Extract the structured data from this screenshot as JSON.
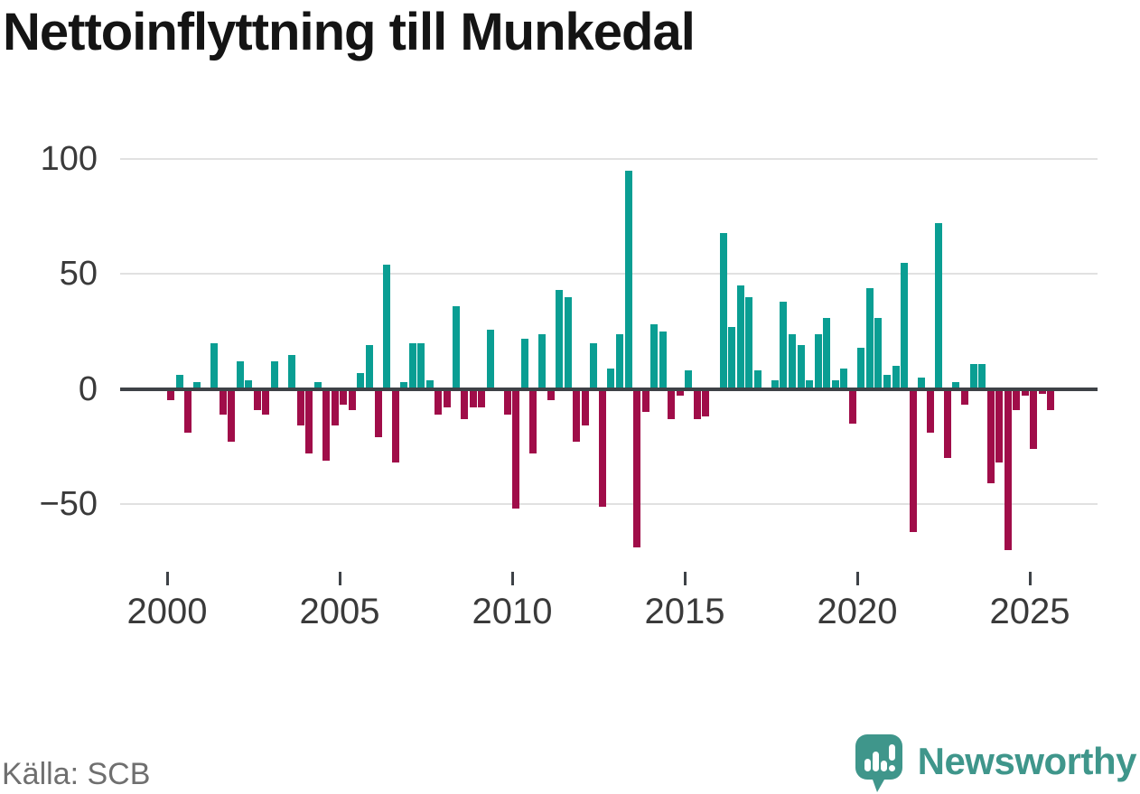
{
  "title": "Nettoinflyttning till Munkedal",
  "source": "Källa: SCB",
  "branding": {
    "logo_text": "Newsworthy",
    "logo_icon": "newsworthy-speech-bubble-chart-icon"
  },
  "colors": {
    "positive_bar": "#0a9e93",
    "negative_bar": "#a00d49",
    "zero_line": "#3e4247",
    "gridline": "#e1e1e1",
    "axis_text": "#3a3a3a",
    "title_text": "#141414",
    "source_text": "#6f6f6f",
    "brand_teal": "#3f968b"
  },
  "chart_data": {
    "type": "bar",
    "title": "Nettoinflyttning till Munkedal",
    "frequency": "quarterly",
    "start_year": 2000,
    "start_quarter": 1,
    "end_year": 2025,
    "end_quarter": 3,
    "values": [
      -5,
      6,
      -19,
      3,
      0,
      20,
      -11,
      -23,
      12,
      4,
      -9,
      -11,
      12,
      0,
      15,
      -16,
      -28,
      3,
      -31,
      -16,
      -7,
      -9,
      7,
      19,
      -21,
      54,
      -32,
      3,
      20,
      20,
      4,
      -11,
      -8,
      36,
      -13,
      -8,
      -8,
      26,
      0,
      -11,
      -52,
      22,
      -28,
      24,
      -5,
      43,
      40,
      -23,
      -16,
      20,
      -51,
      9,
      24,
      95,
      -69,
      -10,
      28,
      25,
      -13,
      -3,
      8,
      -13,
      -12,
      0,
      68,
      27,
      45,
      40,
      8,
      0,
      4,
      38,
      24,
      19,
      4,
      24,
      31,
      4,
      9,
      -15,
      18,
      44,
      31,
      6,
      10,
      55,
      -62,
      5,
      -19,
      72,
      -30,
      3,
      -7,
      11,
      11,
      -41,
      -32,
      -70,
      -9,
      -3,
      -26,
      -2,
      -9
    ],
    "y_ticks": [
      100,
      50,
      0,
      -50
    ],
    "x_ticks": [
      "2000",
      "2005",
      "2010",
      "2015",
      "2020",
      "2025"
    ],
    "ylim": [
      -75,
      105
    ],
    "grid": "horizontal",
    "legend": "none"
  }
}
